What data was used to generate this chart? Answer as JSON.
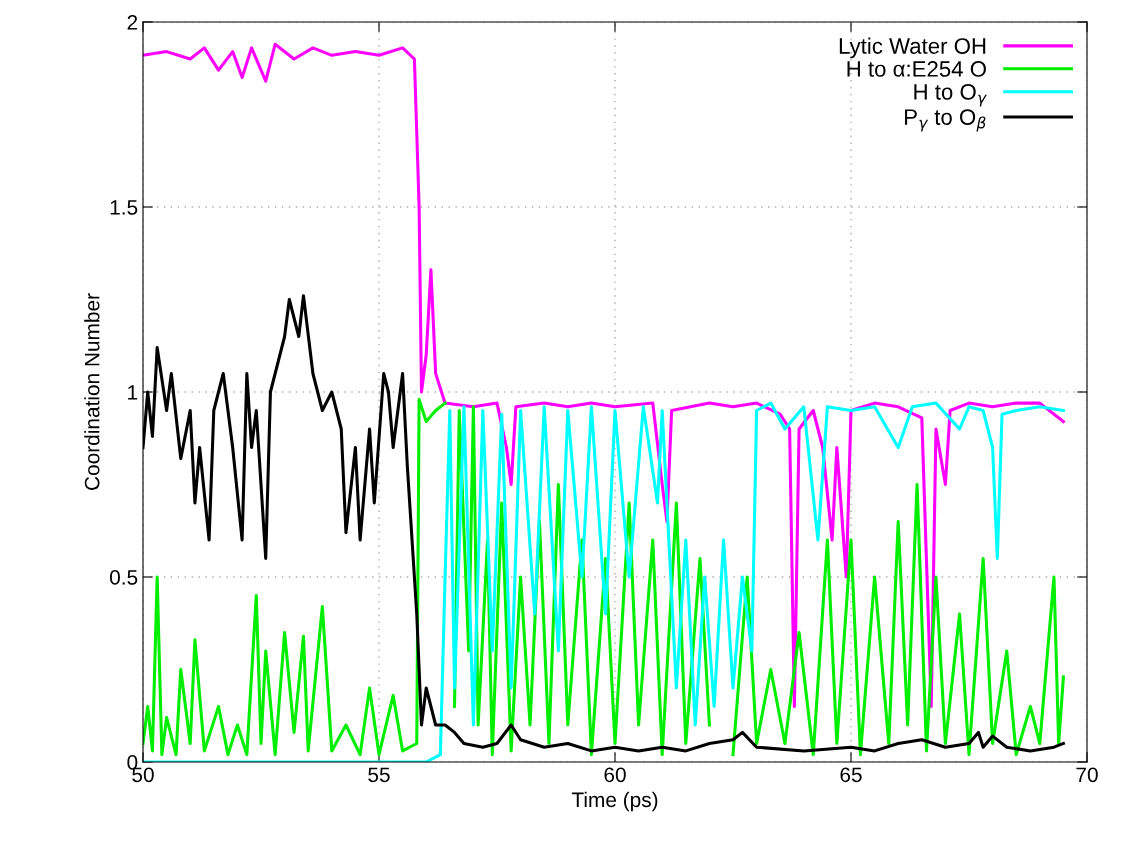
{
  "chart_data": {
    "type": "line",
    "xlabel": "Time (ps)",
    "ylabel": "Coordination Number",
    "xlim": [
      50,
      70
    ],
    "xticks": [
      50,
      55,
      60,
      65,
      70
    ],
    "ylim": [
      0,
      2
    ],
    "yticks": [
      0,
      0.5,
      1,
      1.5,
      2
    ],
    "grid": true,
    "legend": "top right",
    "line_style": "solid",
    "series": [
      {
        "name": "Lytic Water OH",
        "color": "#ff00ff",
        "x": [
          50,
          50.5,
          51,
          51.3,
          51.6,
          51.9,
          52.1,
          52.3,
          52.6,
          52.8,
          53.2,
          53.6,
          54,
          54.5,
          55,
          55.5,
          55.75,
          55.85,
          55.9,
          56.0,
          56.1,
          56.2,
          56.4,
          57,
          57.5,
          57.7,
          57.8,
          57.9,
          58.5,
          59,
          59.5,
          60,
          60.8,
          61,
          61.1,
          61.2,
          61.6,
          62,
          62.5,
          63,
          63.5,
          63.7,
          63.8,
          63.9,
          64.2,
          64.4,
          64.6,
          64.7,
          64.9,
          65.0,
          65.5,
          66,
          66.5,
          66.7,
          66.8,
          67,
          67.1,
          67.5,
          68,
          68.5,
          69,
          69.5
        ],
        "values": [
          1.91,
          1.92,
          1.9,
          1.93,
          1.87,
          1.92,
          1.85,
          1.93,
          1.84,
          1.94,
          1.9,
          1.93,
          1.91,
          1.92,
          1.91,
          1.93,
          1.9,
          1.5,
          1.0,
          1.1,
          1.33,
          1.05,
          0.97,
          0.96,
          0.97,
          0.85,
          0.75,
          0.96,
          0.97,
          0.96,
          0.97,
          0.96,
          0.97,
          0.75,
          0.65,
          0.95,
          0.96,
          0.97,
          0.96,
          0.97,
          0.94,
          0.9,
          0.15,
          0.9,
          0.95,
          0.85,
          0.6,
          0.85,
          0.5,
          0.95,
          0.97,
          0.96,
          0.93,
          0.15,
          0.9,
          0.75,
          0.95,
          0.97,
          0.96,
          0.97,
          0.97,
          0.92
        ]
      },
      {
        "name": "H to α:E254 O",
        "color": "#00ee00",
        "x": [
          50,
          50.1,
          50.2,
          50.3,
          50.4,
          50.5,
          50.7,
          50.8,
          51,
          51.1,
          51.3,
          51.6,
          51.8,
          52,
          52.2,
          52.4,
          52.5,
          52.6,
          52.8,
          53,
          53.2,
          53.4,
          53.5,
          53.8,
          54,
          54.3,
          54.6,
          54.8,
          55,
          55.3,
          55.5,
          55.8,
          55.85,
          56,
          56.2,
          56.4,
          56.5,
          56.6,
          56.7,
          56.9,
          57,
          57.1,
          57.3,
          57.4,
          57.6,
          57.8,
          58,
          58.2,
          58.4,
          58.6,
          58.8,
          59,
          59.3,
          59.5,
          59.8,
          60,
          60.3,
          60.5,
          60.8,
          61,
          61.3,
          61.5,
          61.8,
          62,
          62.3,
          62.5,
          62.8,
          63,
          63.3,
          63.6,
          63.9,
          64.2,
          64.5,
          64.7,
          65,
          65.2,
          65.5,
          65.8,
          66,
          66.2,
          66.4,
          66.6,
          66.8,
          67,
          67.3,
          67.5,
          67.8,
          68,
          68.3,
          68.5,
          68.8,
          69,
          69.3,
          69.4,
          69.5
        ],
        "values": [
          0.05,
          0.15,
          0.03,
          0.5,
          0.02,
          0.12,
          0.02,
          0.25,
          0.05,
          0.33,
          0.03,
          0.15,
          0.02,
          0.1,
          0.02,
          0.45,
          0.05,
          0.3,
          0.02,
          0.35,
          0.08,
          0.34,
          0.03,
          0.42,
          0.03,
          0.1,
          0.02,
          0.2,
          0.02,
          0.18,
          0.03,
          0.05,
          0.98,
          0.92,
          0.95,
          0.97,
          null,
          0.15,
          0.95,
          0.3,
          0.96,
          0.1,
          0.6,
          0.02,
          0.7,
          0.03,
          0.5,
          0.1,
          0.65,
          0.05,
          0.75,
          0.1,
          0.6,
          0.02,
          0.55,
          0.05,
          0.7,
          0.1,
          0.6,
          0.02,
          0.7,
          0.05,
          0.55,
          0.1,
          null,
          0.02,
          0.5,
          0.05,
          0.25,
          0.05,
          0.35,
          0.02,
          0.6,
          0.05,
          0.6,
          0.02,
          0.5,
          0.05,
          0.65,
          0.1,
          0.75,
          0.03,
          0.5,
          0.05,
          0.4,
          0.02,
          0.55,
          0.05,
          0.3,
          0.02,
          0.15,
          0.05,
          0.5,
          0.05,
          0.23
        ]
      },
      {
        "name": "H to O$_{γ}$",
        "color": "#00ffff",
        "x": [
          50,
          56,
          56.3,
          56.4,
          56.5,
          56.6,
          56.8,
          57,
          57.2,
          57.4,
          57.6,
          57.8,
          58,
          58.3,
          58.5,
          58.8,
          59,
          59.3,
          59.5,
          59.8,
          60,
          60.3,
          60.6,
          60.9,
          61,
          61.3,
          61.5,
          61.7,
          61.9,
          62.1,
          62.3,
          62.5,
          62.7,
          62.9,
          63,
          63.3,
          63.6,
          64,
          64.3,
          64.5,
          65,
          65.5,
          66,
          66.3,
          66.8,
          67.3,
          67.5,
          67.8,
          68,
          68.1,
          68.2,
          68.5,
          69,
          69.5
        ],
        "values": [
          0,
          0,
          0.02,
          0.5,
          0.95,
          0.2,
          0.96,
          0.1,
          0.95,
          0.3,
          0.94,
          0.2,
          0.95,
          0.4,
          0.96,
          0.3,
          0.95,
          0.5,
          0.96,
          0.4,
          0.95,
          0.5,
          0.96,
          0.7,
          0.95,
          0.2,
          0.6,
          0.1,
          0.5,
          0.15,
          0.6,
          0.2,
          0.5,
          0.3,
          0.95,
          0.97,
          0.9,
          0.96,
          0.6,
          0.96,
          0.95,
          0.96,
          0.85,
          0.96,
          0.97,
          0.9,
          0.96,
          0.95,
          0.85,
          0.55,
          0.94,
          0.95,
          0.96,
          0.95
        ]
      },
      {
        "name": "P$_{γ}$ to O$_{β}$",
        "color": "#000000",
        "x": [
          50,
          50.1,
          50.2,
          50.3,
          50.5,
          50.6,
          50.8,
          51,
          51.1,
          51.2,
          51.4,
          51.5,
          51.7,
          51.9,
          52.1,
          52.2,
          52.3,
          52.4,
          52.6,
          52.7,
          53,
          53.1,
          53.3,
          53.4,
          53.6,
          53.8,
          54,
          54.2,
          54.3,
          54.5,
          54.6,
          54.8,
          54.9,
          55.1,
          55.2,
          55.3,
          55.5,
          55.6,
          55.8,
          55.9,
          56,
          56.2,
          56.4,
          56.6,
          56.8,
          57.2,
          57.5,
          57.8,
          58,
          58.5,
          59,
          59.5,
          60,
          60.5,
          61,
          61.5,
          62,
          62.5,
          62.7,
          63,
          64,
          65,
          65.5,
          66,
          66.5,
          67,
          67.5,
          67.7,
          67.8,
          68,
          68.3,
          68.8,
          69.3,
          69.5
        ],
        "values": [
          0.85,
          1.0,
          0.88,
          1.12,
          0.95,
          1.05,
          0.82,
          0.95,
          0.7,
          0.85,
          0.6,
          0.95,
          1.05,
          0.85,
          0.6,
          1.05,
          0.85,
          0.95,
          0.55,
          1.0,
          1.15,
          1.25,
          1.15,
          1.26,
          1.05,
          0.95,
          1.0,
          0.9,
          0.62,
          0.85,
          0.6,
          0.9,
          0.7,
          1.05,
          1.0,
          0.85,
          1.05,
          0.8,
          0.4,
          0.1,
          0.2,
          0.1,
          0.1,
          0.08,
          0.05,
          0.04,
          0.05,
          0.1,
          0.06,
          0.04,
          0.05,
          0.03,
          0.04,
          0.03,
          0.04,
          0.03,
          0.05,
          0.06,
          0.08,
          0.04,
          0.03,
          0.04,
          0.03,
          0.05,
          0.06,
          0.04,
          0.05,
          0.08,
          0.04,
          0.07,
          0.04,
          0.03,
          0.04,
          0.05
        ]
      }
    ]
  }
}
